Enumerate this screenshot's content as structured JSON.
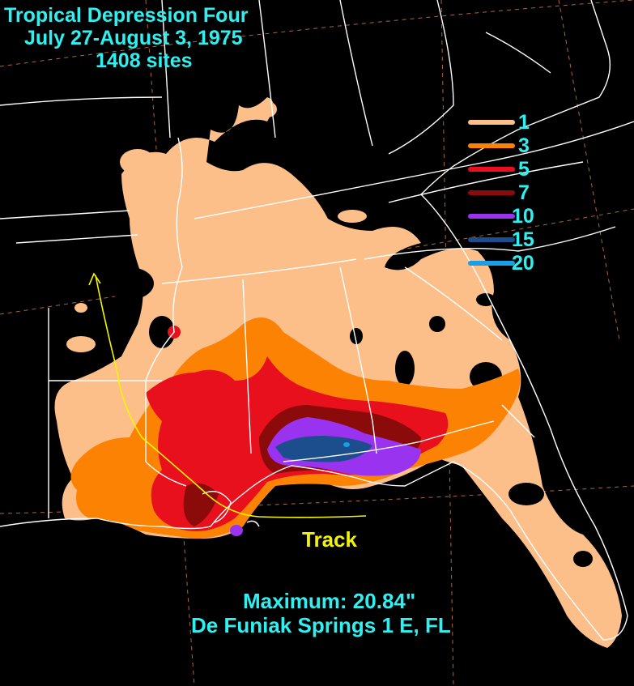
{
  "title": {
    "line1": "Tropical Depression Four",
    "line2": "July 27-August 3, 1975",
    "line3": "1408 sites"
  },
  "legend": {
    "units": "inches",
    "items": [
      {
        "label": "1",
        "color": "#fdbf8a"
      },
      {
        "label": "3",
        "color": "#fc8204"
      },
      {
        "label": "5",
        "color": "#e8101c"
      },
      {
        "label": "7",
        "color": "#8b0a0a"
      },
      {
        "label": "10",
        "color": "#9a33f0"
      },
      {
        "label": "15",
        "color": "#1c4d8c"
      },
      {
        "label": "20",
        "color": "#1a9ee6"
      }
    ]
  },
  "track": {
    "label": "Track",
    "color": "#f5f500"
  },
  "maximum": {
    "line1": "Maximum:  20.84\"",
    "line2": "De Funiak Springs 1 E, FL"
  },
  "colors": {
    "background": "#000000",
    "boundaries": "#ffffff",
    "graticule": "#c87850",
    "text": "#2ff0f0"
  }
}
